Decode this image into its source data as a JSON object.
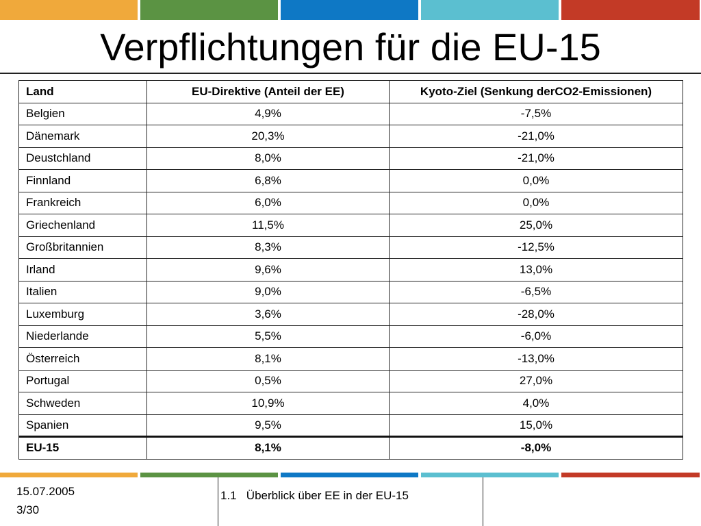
{
  "colors": {
    "bar": [
      "#f0a93b",
      "#5b9343",
      "#0e78c5",
      "#5bbfd0",
      "#c33a26"
    ]
  },
  "title": "Verpflichtungen für die EU-15",
  "table": {
    "headers": [
      "Land",
      "EU-Direktive (Anteil der EE)",
      "Kyoto-Ziel (Senkung derCO2-Emissionen)"
    ],
    "rows": [
      [
        "Belgien",
        "4,9%",
        "-7,5%"
      ],
      [
        "Dänemark",
        "20,3%",
        "-21,0%"
      ],
      [
        "Deustchland",
        "8,0%",
        "-21,0%"
      ],
      [
        "Finnland",
        "6,8%",
        "0,0%"
      ],
      [
        "Frankreich",
        "6,0%",
        "0,0%"
      ],
      [
        "Griechenland",
        "11,5%",
        "25,0%"
      ],
      [
        "Großbritannien",
        "8,3%",
        "-12,5%"
      ],
      [
        "Irland",
        "9,6%",
        "13,0%"
      ],
      [
        "Italien",
        "9,0%",
        "-6,5%"
      ],
      [
        "Luxemburg",
        "3,6%",
        "-28,0%"
      ],
      [
        "Niederlande",
        "5,5%",
        "-6,0%"
      ],
      [
        "Österreich",
        "8,1%",
        "-13,0%"
      ],
      [
        "Portugal",
        "0,5%",
        "27,0%"
      ],
      [
        "Schweden",
        "10,9%",
        "4,0%"
      ],
      [
        "Spanien",
        "9,5%",
        "15,0%"
      ]
    ],
    "total": [
      "EU-15",
      "8,1%",
      "-8,0%"
    ]
  },
  "footer": {
    "date": "15.07.2005",
    "page": "3/30",
    "section": "1.1   Überblick über EE in der EU-15"
  }
}
